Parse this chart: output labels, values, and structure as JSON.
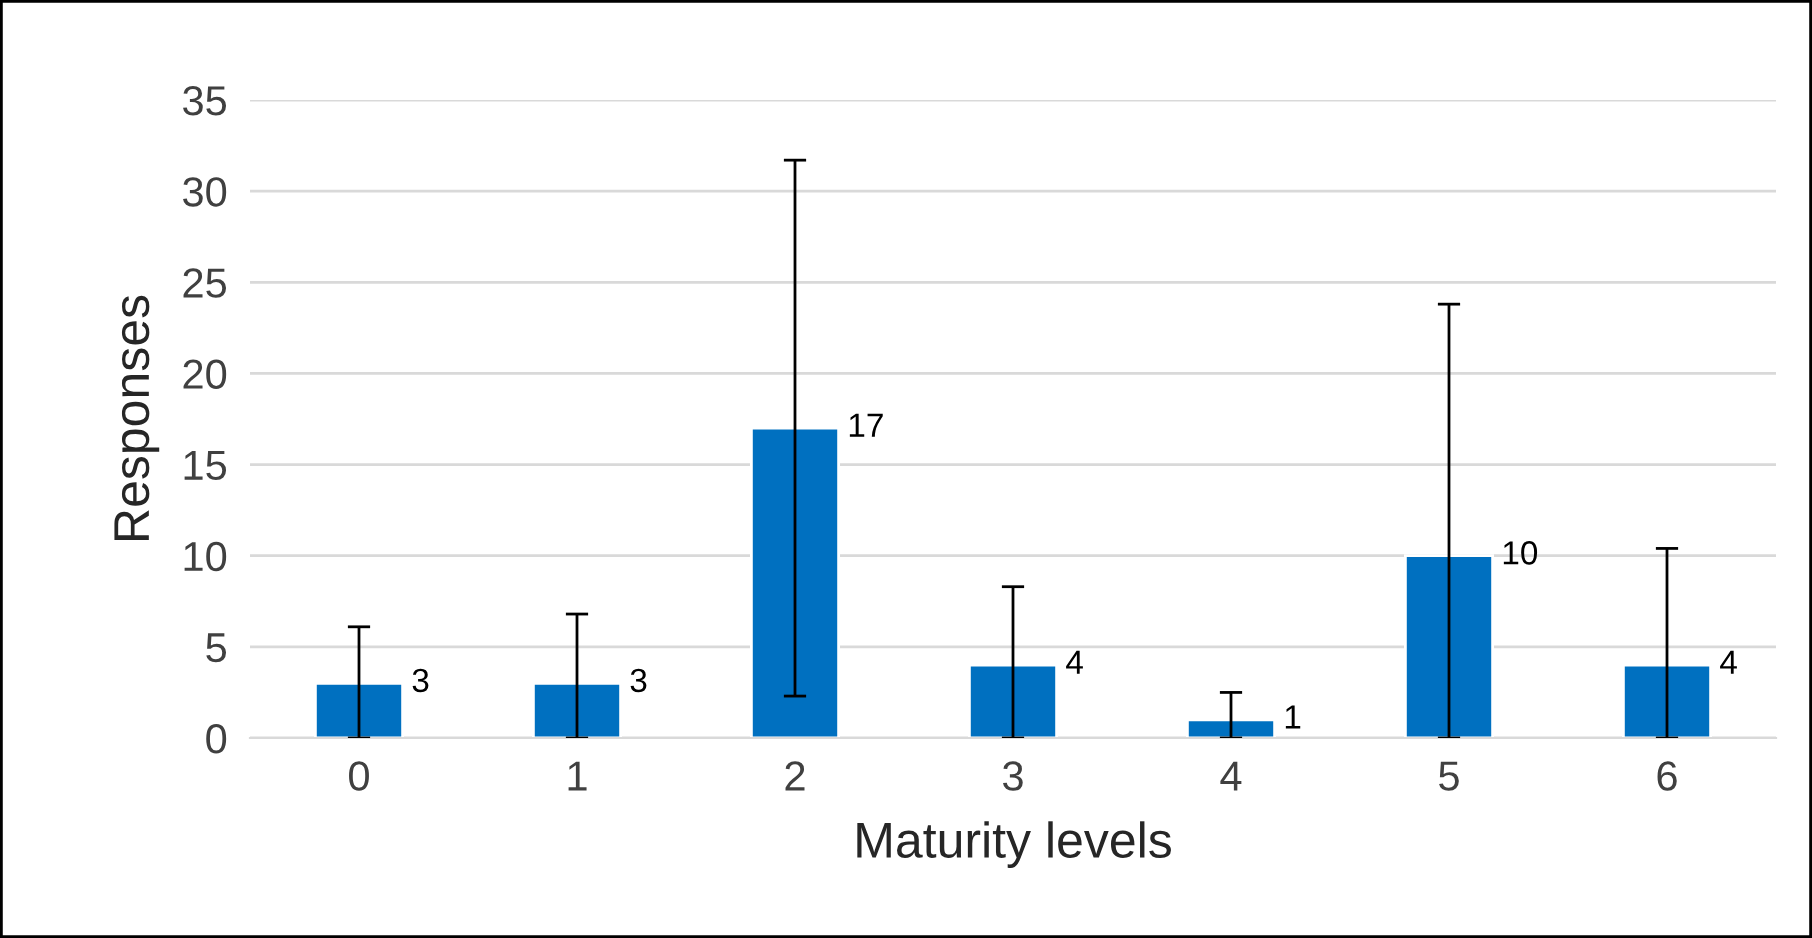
{
  "chart_data": {
    "type": "bar",
    "xlabel": "Maturity levels",
    "ylabel": "Responses",
    "categories": [
      "0",
      "1",
      "2",
      "3",
      "4",
      "5",
      "6"
    ],
    "values": [
      3,
      3,
      17,
      4,
      1,
      10,
      4
    ],
    "errors": [
      [
        0,
        6.1
      ],
      [
        0,
        6.8
      ],
      14.7,
      [
        0,
        8.3
      ],
      [
        0,
        2.5
      ],
      [
        0,
        23.8
      ],
      [
        0,
        10.4
      ]
    ],
    "color": "#0070c0",
    "ylim": [
      0,
      35
    ],
    "yticks": [
      0,
      5,
      10,
      15,
      20,
      25,
      30,
      35
    ],
    "grid": "y",
    "data_labels": true
  }
}
